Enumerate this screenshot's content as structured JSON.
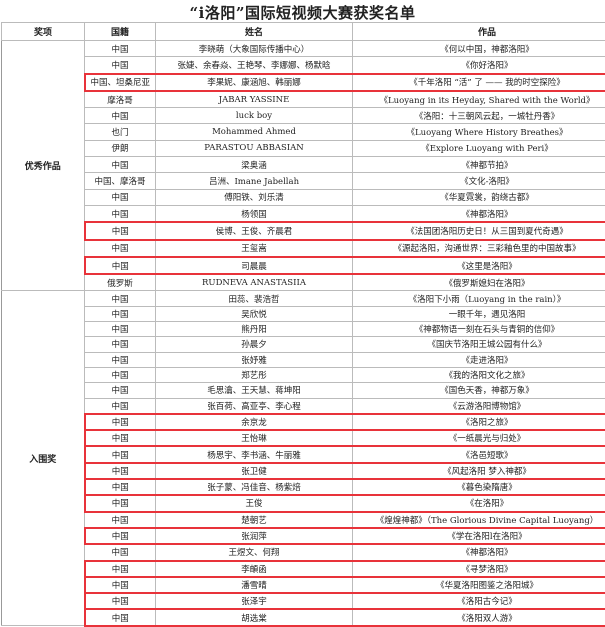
{
  "title": "“i洛阳”国际短视频大赛获奖名单",
  "headers": [
    "奖项",
    "国籍",
    "姓名",
    "作品"
  ],
  "highlight_color": "#e8333a",
  "sections": [
    {
      "award": "优秀作品",
      "rows": [
        {
          "nationality": "中国",
          "name": "李晓萌（大象国际传播中心）",
          "work": "《何以中国，神都洛阳》",
          "highlighted": false
        },
        {
          "nationality": "中国",
          "name": "张婕、余春焱、王艳琴、李娜娜、杨默晗",
          "work": "《你好洛阳》",
          "highlighted": false
        },
        {
          "nationality": "中国、坦桑尼亚",
          "name": "李果妮、康涵旭、韩丽娜",
          "work": "《千年洛阳 “活” 了 —— 我的时空探险》",
          "highlighted": true
        },
        {
          "nationality": "摩洛哥",
          "name": "JABAR YASSINE",
          "work": "《Luoyang in its Heyday, Shared with the World》",
          "highlighted": false
        },
        {
          "nationality": "中国",
          "name": "luck boy",
          "work": "《洛阳：十三朝风云起，一城牡丹香》",
          "highlighted": false
        },
        {
          "nationality": "也门",
          "name": "Mohammed Ahmed",
          "work": "《Luoyang Where History Breathes》",
          "highlighted": false
        },
        {
          "nationality": "伊朗",
          "name": "PARASTOU ABBASIAN",
          "work": "《Explore Luoyang with Peri》",
          "highlighted": false
        },
        {
          "nationality": "中国",
          "name": "梁奥涵",
          "work": "《神都节拍》",
          "highlighted": false
        },
        {
          "nationality": "中国、摩洛哥",
          "name": "吕洲、Imane Jabellah",
          "work": "《文化-洛阳》",
          "highlighted": false
        },
        {
          "nationality": "中国",
          "name": "傅阳铁、刘乐清",
          "work": "《华夏霓裳，韵绕古都》",
          "highlighted": false
        },
        {
          "nationality": "中国",
          "name": "杨领国",
          "work": "《神都洛阳》",
          "highlighted": false
        },
        {
          "nationality": "中国",
          "name": "侯博、王俊、齐晨君",
          "work": "《法国团洛阳历史日！从三国到夏代奇遇》",
          "highlighted": true
        },
        {
          "nationality": "中国",
          "name": "王玺嵩",
          "work": "《源起洛阳，沟通世界：三彩釉色里的中国故事》",
          "highlighted": false
        },
        {
          "nationality": "中国",
          "name": "司晨晨",
          "work": "《这里是洛阳》",
          "highlighted": true
        },
        {
          "nationality": "俄罗斯",
          "name": "RUDNEVA ANASTASIIA",
          "work": "《俄罗斯媳妇在洛阳》",
          "highlighted": false
        }
      ]
    },
    {
      "award": "入围奖",
      "rows": [
        {
          "nationality": "中国",
          "name": "田蕊、裴浩哲",
          "work": "《洛阳下小雨（Luoyang in the rain）》",
          "highlighted": false
        },
        {
          "nationality": "中国",
          "name": "吴欣悦",
          "work": "一眼千年，遇见洛阳",
          "highlighted": false
        },
        {
          "nationality": "中国",
          "name": "熊丹阳",
          "work": "《神都物语一刻在石头与青铜的信仰》",
          "highlighted": false
        },
        {
          "nationality": "中国",
          "name": "孙晨夕",
          "work": "《国庆节洛阳王城公园有什么》",
          "highlighted": false
        },
        {
          "nationality": "中国",
          "name": "张妤雅",
          "work": "《走进洛阳》",
          "highlighted": false
        },
        {
          "nationality": "中国",
          "name": "郑艺彤",
          "work": "《我的洛阳文化之旅》",
          "highlighted": false
        },
        {
          "nationality": "中国",
          "name": "毛思瀹、王天慧、蒋坤阳",
          "work": "《国色天香，神都万象》",
          "highlighted": false
        },
        {
          "nationality": "中国",
          "name": "张百荷、高亚亭、李心程",
          "work": "《云游洛阳博物馆》",
          "highlighted": false
        },
        {
          "nationality": "中国",
          "name": "余京龙",
          "work": "《洛阳之旅》",
          "highlighted": true
        },
        {
          "nationality": "中国",
          "name": "王怡琳",
          "work": "《一纸晨光与归处》",
          "highlighted": true
        },
        {
          "nationality": "中国",
          "name": "杨思宇、李书涵、牛丽雅",
          "work": "《洛邑短歌》",
          "highlighted": true
        },
        {
          "nationality": "中国",
          "name": "张卫健",
          "work": "《风起洛阳 梦入神都》",
          "highlighted": true
        },
        {
          "nationality": "中国",
          "name": "张子蒙、冯佳音、杨紫焙",
          "work": "《暮色染隋唐》",
          "highlighted": true
        },
        {
          "nationality": "中国",
          "name": "王俊",
          "work": "《在洛阳》",
          "highlighted": true
        },
        {
          "nationality": "中国",
          "name": "楚朝艺",
          "work": "《煌煌神都》（The Glorious Divine Capital Luoyang）",
          "highlighted": false
        },
        {
          "nationality": "中国",
          "name": "张润萍",
          "work": "《学在洛阳l在洛阳》",
          "highlighted": true
        },
        {
          "nationality": "中国",
          "name": "王煜文、何翔",
          "work": "《神都洛阳》",
          "highlighted": false
        },
        {
          "nationality": "中国",
          "name": "李頔函",
          "work": "《寻梦洛阳》",
          "highlighted": true
        },
        {
          "nationality": "中国",
          "name": "潘雪晴",
          "work": "《华夏洛阳图鉴之洛阳城》",
          "highlighted": true
        },
        {
          "nationality": "中国",
          "name": "张泽宇",
          "work": "《洛阳古今记》",
          "highlighted": true
        },
        {
          "nationality": "中国",
          "name": "胡选棠",
          "work": "《洛阳双人游》",
          "highlighted": true
        }
      ]
    }
  ]
}
